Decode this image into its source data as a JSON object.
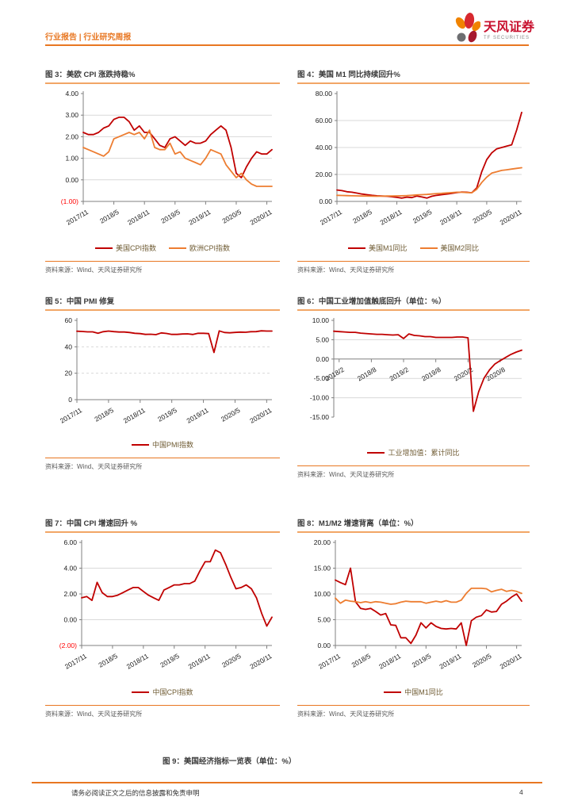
{
  "header": {
    "left_text": "行业报告 | 行业研究周报",
    "brand_name": "天风证券",
    "brand_sub": "TF SECURITIES"
  },
  "source_label": "资料来源：Wind、天风证券研究所",
  "colors": {
    "accent_orange": "#E87722",
    "title_underline": "#F2A666",
    "line_red": "#C00000",
    "line_orange": "#ED7D31",
    "negative_tick_red": "#FF0000",
    "grid_gray": "#D9D9D9"
  },
  "chart_data": [
    {
      "type": "line",
      "title": "图 3：美欧 CPI 涨跌持稳%",
      "ylim": [
        -1,
        4
      ],
      "ytick_values": [
        4,
        3,
        2,
        1,
        0,
        -1
      ],
      "ytick_labels": [
        "4.00",
        "3.00",
        "2.00",
        "1.00",
        "0.00",
        "(1.00)"
      ],
      "xticklabels": [
        "2017/11",
        "2018/5",
        "2018/11",
        "2019/5",
        "2019/11",
        "2020/5",
        "2020/11"
      ],
      "series": [
        {
          "name": "美国CPI指数",
          "color": "#C00000",
          "values": [
            2.2,
            2.1,
            2.1,
            2.2,
            2.4,
            2.5,
            2.8,
            2.9,
            2.9,
            2.7,
            2.3,
            2.5,
            2.2,
            2.2,
            1.9,
            1.6,
            1.5,
            1.9,
            2.0,
            1.8,
            1.6,
            1.8,
            1.7,
            1.7,
            1.8,
            2.1,
            2.3,
            2.5,
            2.3,
            1.5,
            0.3,
            0.1,
            0.6,
            1.0,
            1.3,
            1.2,
            1.2,
            1.4
          ]
        },
        {
          "name": "欧洲CPI指数",
          "color": "#ED7D31",
          "values": [
            1.5,
            1.4,
            1.3,
            1.2,
            1.1,
            1.3,
            1.9,
            2.0,
            2.1,
            2.2,
            2.1,
            2.2,
            1.9,
            2.3,
            1.5,
            1.4,
            1.4,
            1.7,
            1.2,
            1.3,
            1.0,
            0.9,
            0.8,
            0.7,
            1.0,
            1.4,
            1.3,
            1.2,
            0.7,
            0.4,
            0.1,
            0.3,
            0.0,
            -0.2,
            -0.3,
            -0.3,
            -0.3,
            -0.3
          ]
        }
      ]
    },
    {
      "type": "line",
      "title": "图 4：美国 M1 同比持续回升%",
      "ylim": [
        0,
        80
      ],
      "ytick_values": [
        80,
        60,
        40,
        20,
        0
      ],
      "ytick_labels": [
        "80.00",
        "60.00",
        "40.00",
        "20.00",
        "0.00"
      ],
      "xticklabels": [
        "2017/11",
        "2018/5",
        "2018/11",
        "2019/5",
        "2019/11",
        "2020/5",
        "2020/11"
      ],
      "series": [
        {
          "name": "美国M1同比",
          "color": "#C00000",
          "values": [
            8.5,
            8.0,
            7.2,
            6.8,
            6.2,
            5.5,
            5.0,
            4.5,
            4.2,
            4.0,
            3.8,
            3.5,
            3.0,
            2.5,
            3.2,
            2.8,
            4.0,
            3.3,
            2.5,
            3.8,
            4.5,
            5.0,
            5.5,
            6.0,
            6.5,
            7.0,
            6.8,
            6.4,
            10.0,
            22.0,
            31.0,
            36.0,
            39.0,
            40.0,
            41.0,
            42.0,
            53.0,
            66.0
          ]
        },
        {
          "name": "美国M2同比",
          "color": "#ED7D31",
          "values": [
            4.5,
            4.4,
            4.3,
            4.2,
            4.1,
            4.0,
            4.0,
            3.9,
            3.8,
            3.9,
            4.0,
            4.0,
            4.1,
            4.2,
            4.3,
            4.5,
            4.8,
            5.0,
            5.2,
            5.5,
            5.8,
            6.0,
            6.3,
            6.5,
            6.8,
            6.8,
            6.6,
            6.4,
            9.0,
            14.0,
            18.0,
            21.0,
            22.0,
            23.0,
            23.5,
            24.0,
            24.5,
            25.0
          ]
        }
      ]
    },
    {
      "type": "line",
      "title": "图 5：中国 PMI 修复",
      "ylim": [
        0,
        60
      ],
      "ytick_values": [
        60,
        40,
        20,
        0
      ],
      "ytick_labels": [
        "60",
        "40",
        "20",
        "0"
      ],
      "xticklabels": [
        "2017/11",
        "2018/5",
        "2018/11",
        "2019/5",
        "2019/11",
        "2020/5",
        "2020/11"
      ],
      "series": [
        {
          "name": "中国PMI指数",
          "color": "#C00000",
          "values": [
            51.8,
            51.6,
            51.3,
            51.3,
            50.3,
            51.4,
            51.9,
            51.5,
            51.2,
            51.2,
            50.8,
            50.2,
            50.0,
            49.4,
            49.5,
            49.2,
            50.5,
            50.1,
            49.4,
            49.4,
            49.7,
            49.8,
            49.3,
            50.2,
            50.2,
            50.0,
            35.7,
            52.0,
            50.8,
            50.6,
            50.9,
            51.1,
            51.0,
            51.4,
            51.5,
            52.1,
            51.9,
            51.9
          ]
        }
      ]
    },
    {
      "type": "line",
      "title": "图 6：中国工业增加值触底回升（单位：%）",
      "ylim": [
        -15,
        10
      ],
      "axis_at": 0,
      "ytick_values": [
        10,
        5,
        0,
        -5,
        -10,
        -15
      ],
      "ytick_labels": [
        "10.00",
        "5.00",
        "0.00",
        "-5.00",
        "-10.00",
        "-15.00"
      ],
      "xticklabels": [
        "2018/2",
        "2018/8",
        "2019/2",
        "2019/8",
        "2020/2",
        "2020/8"
      ],
      "series": [
        {
          "name": "工业增加值：累计同比",
          "color": "#C00000",
          "values": [
            7.2,
            7.1,
            7.0,
            6.9,
            6.9,
            6.7,
            6.6,
            6.5,
            6.4,
            6.4,
            6.3,
            6.2,
            6.3,
            5.3,
            6.5,
            6.1,
            6.0,
            5.8,
            5.8,
            5.6,
            5.6,
            5.6,
            5.6,
            5.7,
            5.7,
            5.5,
            -13.5,
            -8.4,
            -4.9,
            -2.8,
            -1.3,
            -0.4,
            0.4,
            1.2,
            1.8,
            2.3
          ]
        }
      ]
    },
    {
      "type": "line",
      "title": "图 7：中国 CPI 增速回升 %",
      "ylim": [
        -2,
        6
      ],
      "ytick_values": [
        6,
        4,
        2,
        0,
        -2
      ],
      "ytick_labels": [
        "6.00",
        "4.00",
        "2.00",
        "0.00",
        "(2.00)"
      ],
      "xticklabels": [
        "2017/11",
        "2018/5",
        "2018/11",
        "2019/5",
        "2019/11",
        "2020/5",
        "2020/11"
      ],
      "series": [
        {
          "name": "中国CPI指数",
          "color": "#C00000",
          "values": [
            1.7,
            1.8,
            1.5,
            2.9,
            2.1,
            1.8,
            1.8,
            1.9,
            2.1,
            2.3,
            2.5,
            2.5,
            2.2,
            1.9,
            1.7,
            1.5,
            2.3,
            2.5,
            2.7,
            2.7,
            2.8,
            2.8,
            3.0,
            3.8,
            4.5,
            4.5,
            5.4,
            5.2,
            4.3,
            3.3,
            2.4,
            2.5,
            2.7,
            2.4,
            1.7,
            0.5,
            -0.5,
            0.2
          ]
        }
      ]
    },
    {
      "type": "line",
      "title": "图 8：M1/M2 增速背离（单位：%）",
      "ylim": [
        0,
        20
      ],
      "ytick_values": [
        20,
        15,
        10,
        5,
        0
      ],
      "ytick_labels": [
        "20.00",
        "15.00",
        "10.00",
        "5.00",
        "0.00"
      ],
      "xticklabels": [
        "2017/11",
        "2018/5",
        "2018/11",
        "2019/5",
        "2019/11",
        "2020/5",
        "2020/11"
      ],
      "series": [
        {
          "name": "中国M1同比",
          "color": "#C00000",
          "values": [
            12.7,
            12.2,
            11.8,
            15.0,
            8.5,
            7.2,
            7.0,
            7.2,
            6.6,
            5.9,
            6.2,
            4.0,
            3.9,
            1.5,
            1.5,
            0.4,
            2.0,
            4.4,
            3.4,
            4.4,
            3.7,
            3.3,
            3.2,
            3.3,
            3.2,
            4.4,
            0.0,
            4.8,
            5.5,
            5.8,
            6.9,
            6.5,
            6.6,
            8.0,
            8.6,
            9.4,
            10.0,
            8.6
          ]
        },
        {
          "name": "",
          "color": "#ED7D31",
          "values": [
            9.2,
            8.2,
            8.8,
            8.6,
            8.5,
            8.3,
            8.5,
            8.3,
            8.5,
            8.4,
            8.2,
            8.0,
            8.1,
            8.4,
            8.6,
            8.5,
            8.5,
            8.5,
            8.2,
            8.4,
            8.6,
            8.4,
            8.7,
            8.4,
            8.4,
            8.8,
            10.1,
            11.1,
            11.1,
            11.1,
            11.0,
            10.4,
            10.7,
            10.9,
            10.5,
            10.7,
            10.5,
            10.1
          ]
        }
      ]
    }
  ],
  "figure9": {
    "title": "图 9：美国经济指标一览表（单位：%）"
  },
  "footer": {
    "disclaimer": "请务必阅读正文之后的信息披露和免责申明",
    "page_number": "4"
  }
}
